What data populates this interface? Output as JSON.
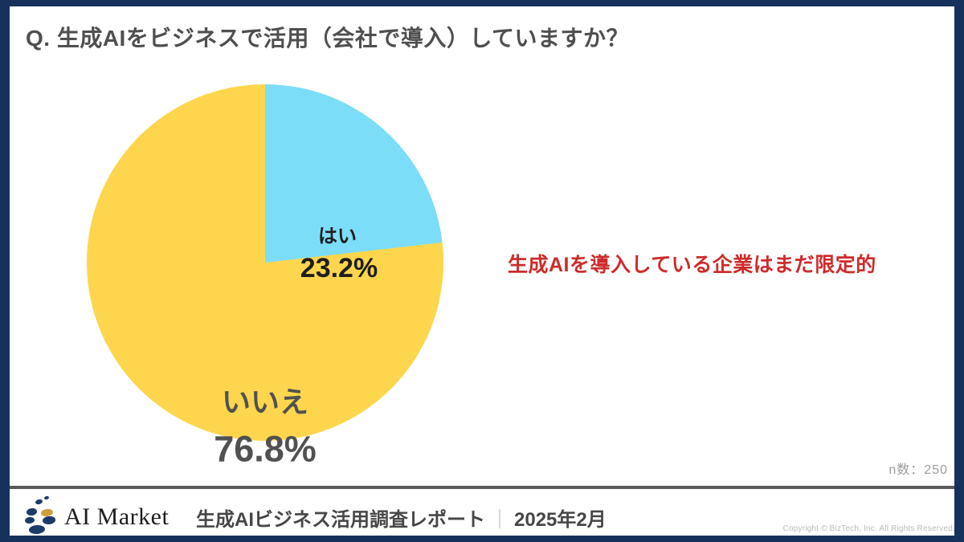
{
  "frame": {
    "border_color": "#16315C"
  },
  "header": {
    "title": "Q. 生成AIをビジネスで活用（会社で導入）していますか？"
  },
  "chart_data": {
    "type": "pie",
    "title": "Q. 生成AIをビジネスで活用（会社で導入）していますか？",
    "categories": [
      "はい",
      "いいえ"
    ],
    "values": [
      23.2,
      76.8
    ],
    "slices": [
      {
        "label": "はい",
        "value": 23.2,
        "value_label": "23.2%",
        "color": "#7CDDF8"
      },
      {
        "label": "いいえ",
        "value": 76.8,
        "value_label": "76.8%",
        "color": "#FDD64E"
      }
    ],
    "start_angle_deg": 0,
    "direction": "clockwise",
    "legend": "none",
    "sample_size": 250,
    "sample_size_label": "n数：250",
    "annotation": "生成AIを導入している企業はまだ限定的"
  },
  "annotation": {
    "text": "生成AIを導入している企業はまだ限定的",
    "color": "#CE2B2B"
  },
  "footer": {
    "logo_text": "AI Market",
    "report_title": "生成AIビジネス活用調査レポート",
    "separator": "｜",
    "date": "2025年2月",
    "copyright": "Copyright © BizTech, Inc. All Rights Reserved.",
    "logo_navy": "#1D3A6B",
    "logo_gold": "#CE9E3C"
  }
}
